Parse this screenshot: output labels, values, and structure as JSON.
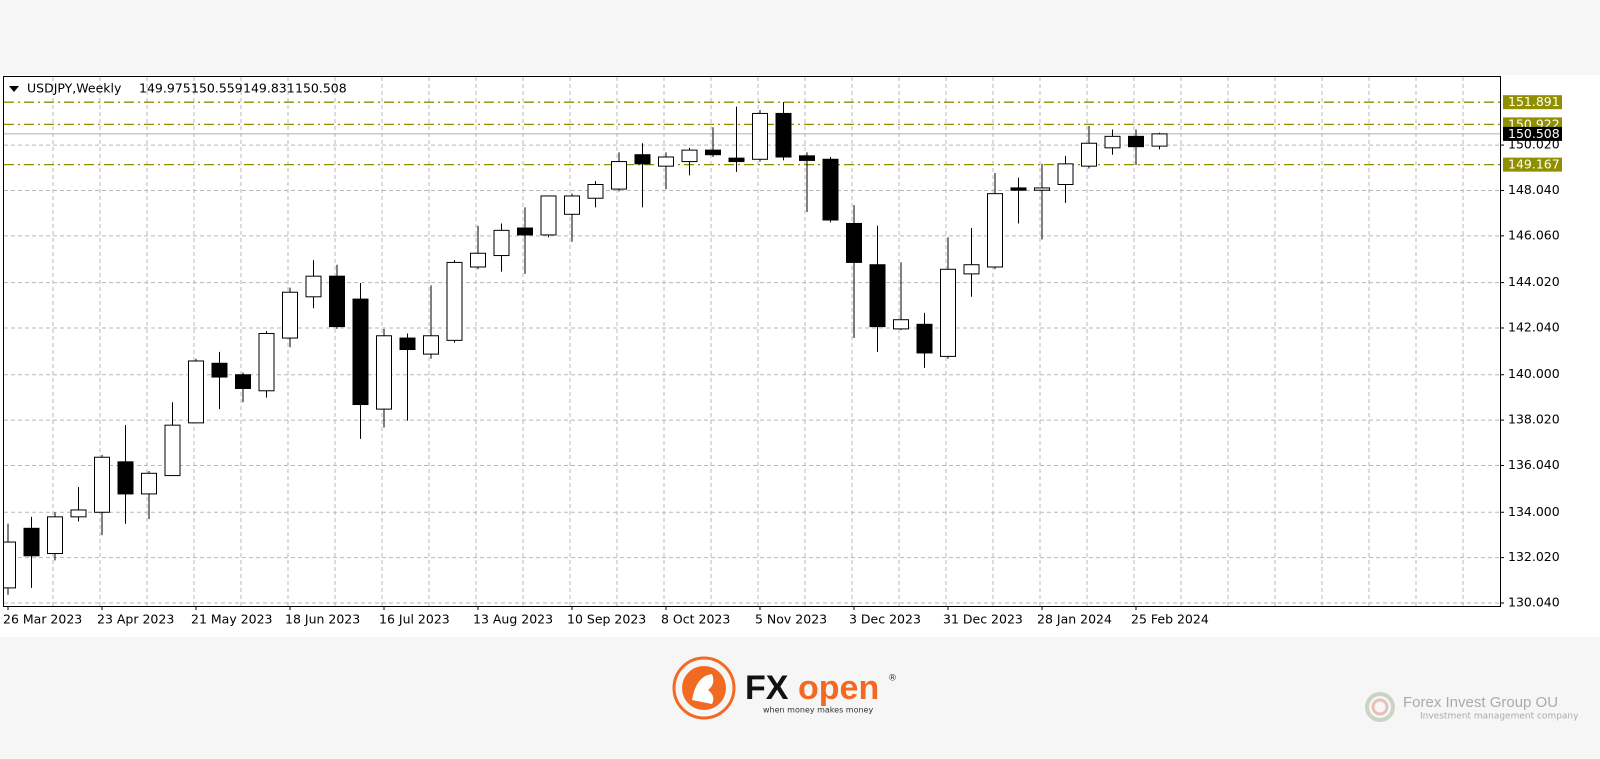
{
  "chart_data": {
    "type": "candlestick",
    "header": {
      "symbol": "USDJPY,Weekly",
      "ohlc": [
        149.975,
        150.559,
        149.831,
        150.508
      ]
    },
    "categories": [
      "26 Mar 2023",
      null,
      null,
      null,
      "23 Apr 2023",
      null,
      null,
      null,
      "21 May 2023",
      null,
      null,
      null,
      "18 Jun 2023",
      null,
      null,
      null,
      "16 Jul 2023",
      null,
      null,
      null,
      "13 Aug 2023",
      null,
      null,
      null,
      "10 Sep 2023",
      null,
      null,
      null,
      "8 Oct 2023",
      null,
      null,
      null,
      "5 Nov 2023",
      null,
      null,
      null,
      "3 Dec 2023",
      null,
      null,
      null,
      "31 Dec 2023",
      null,
      null,
      null,
      "28 Jan 2024",
      null,
      null,
      null,
      "25 Feb 2024",
      null
    ],
    "open": [
      130.7,
      133.3,
      132.2,
      133.8,
      134.0,
      136.2,
      134.8,
      135.6,
      137.9,
      140.5,
      140.0,
      139.3,
      141.6,
      143.4,
      144.3,
      143.3,
      138.5,
      141.6,
      140.9,
      141.5,
      144.7,
      145.2,
      146.4,
      146.1,
      147.0,
      147.7,
      148.1,
      149.6,
      149.1,
      149.3,
      149.8,
      149.45,
      149.4,
      151.4,
      149.55,
      149.4,
      146.6,
      144.8,
      142.0,
      142.2,
      140.8,
      144.4,
      144.7,
      148.15,
      148.05,
      148.3,
      149.1,
      149.9,
      150.4,
      149.975
    ],
    "high": [
      133.5,
      133.8,
      134.0,
      135.1,
      136.5,
      137.8,
      135.8,
      138.8,
      140.7,
      141.0,
      140.1,
      141.9,
      143.8,
      145.0,
      144.8,
      144.0,
      142.0,
      141.8,
      143.9,
      145.0,
      146.5,
      146.6,
      147.3,
      147.8,
      147.9,
      148.45,
      149.7,
      150.1,
      149.7,
      149.9,
      150.8,
      151.7,
      151.55,
      151.9,
      149.7,
      149.5,
      147.4,
      146.5,
      144.9,
      142.7,
      146.0,
      146.4,
      148.8,
      148.6,
      149.2,
      149.55,
      150.85,
      150.7,
      150.7,
      150.559
    ],
    "low": [
      130.4,
      130.7,
      131.9,
      133.6,
      133.0,
      133.5,
      133.7,
      135.6,
      137.9,
      138.5,
      138.8,
      139.0,
      141.2,
      142.9,
      142.0,
      137.2,
      137.7,
      138.0,
      140.7,
      141.4,
      144.6,
      144.5,
      144.4,
      146.0,
      145.8,
      147.3,
      148.0,
      147.3,
      148.1,
      148.7,
      149.5,
      148.85,
      149.3,
      149.35,
      147.1,
      146.65,
      141.6,
      141.0,
      141.95,
      140.3,
      140.7,
      143.4,
      144.6,
      146.6,
      145.9,
      147.5,
      149.0,
      149.6,
      149.15,
      149.831
    ],
    "close": [
      132.7,
      132.1,
      133.8,
      134.1,
      136.4,
      134.8,
      135.7,
      137.8,
      140.6,
      139.9,
      139.4,
      141.8,
      143.6,
      144.3,
      142.1,
      138.7,
      141.7,
      141.1,
      141.7,
      144.9,
      145.3,
      146.3,
      146.1,
      147.8,
      147.8,
      148.3,
      149.3,
      149.2,
      149.5,
      149.8,
      149.6,
      149.3,
      151.4,
      149.5,
      149.35,
      146.75,
      144.9,
      142.1,
      142.4,
      140.95,
      144.6,
      144.8,
      147.9,
      148.05,
      148.15,
      149.2,
      150.1,
      150.4,
      149.95,
      150.508
    ],
    "up_color": "#ffffff",
    "down_color": "#000000",
    "outline_color": "#000000",
    "ylim": [
      129.91,
      152.99
    ],
    "yticks": [
      {
        "value": 130.04,
        "label": "130.040"
      },
      {
        "value": 132.02,
        "label": "132.020"
      },
      {
        "value": 134.0,
        "label": "134.000"
      },
      {
        "value": 136.04,
        "label": "136.040"
      },
      {
        "value": 138.02,
        "label": "138.020"
      },
      {
        "value": 140.0,
        "label": "140.000"
      },
      {
        "value": 142.04,
        "label": "142.040"
      },
      {
        "value": 144.02,
        "label": "144.020"
      },
      {
        "value": 146.06,
        "label": "146.060"
      },
      {
        "value": 148.04,
        "label": "148.040"
      },
      {
        "value": 150.02,
        "label": "150.020"
      }
    ],
    "grid": true,
    "levels": [
      151.891,
      150.922,
      149.167
    ],
    "level_color": "#8f8f00",
    "current_price": 150.508
  },
  "branding": {
    "logo_fx": "FX",
    "logo_open": "open",
    "logo_mark": "®",
    "tagline": "when money makes money",
    "partner": "Forex Invest Group OU",
    "partner_tagline": "Investment management company"
  }
}
